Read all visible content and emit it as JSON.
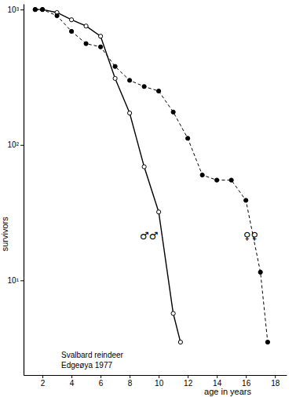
{
  "chart_data": {
    "type": "line",
    "x_label": "age in years",
    "y_label": "survivors",
    "annotations": [
      "Svalbard reindeer",
      "Edgeøya 1977"
    ],
    "log": "y",
    "xlim": [
      0.7,
      18.8
    ],
    "ylim": [
      2,
      1100
    ],
    "xticks": [
      2,
      4,
      6,
      8,
      10,
      12,
      14,
      16,
      18
    ],
    "yticks": [
      {
        "value": 10,
        "label": "10¹"
      },
      {
        "value": 100,
        "label": "10²"
      },
      {
        "value": 1000,
        "label": "10³"
      }
    ],
    "series": [
      {
        "name": "♂♂",
        "color": "#000000",
        "marker": "open-circle",
        "line_style": "solid",
        "x": [
          1.5,
          2,
          3,
          4,
          5,
          6,
          7,
          8,
          9,
          10,
          11,
          11.5
        ],
        "values": [
          1000,
          1000,
          950,
          840,
          755,
          635,
          310,
          172,
          69,
          32,
          5.7,
          3.5
        ]
      },
      {
        "name": "♀♀",
        "color": "#000000",
        "marker": "filled-circle",
        "line_style": "dashed",
        "x": [
          1.5,
          2,
          3,
          4,
          5,
          6,
          7,
          8,
          9,
          10,
          11,
          12,
          13,
          14,
          15,
          16,
          17,
          17.5
        ],
        "values": [
          1000,
          1000,
          900,
          690,
          560,
          530,
          380,
          300,
          270,
          250,
          175,
          112,
          60,
          55,
          55,
          39,
          11.5,
          3.5
        ]
      }
    ]
  }
}
